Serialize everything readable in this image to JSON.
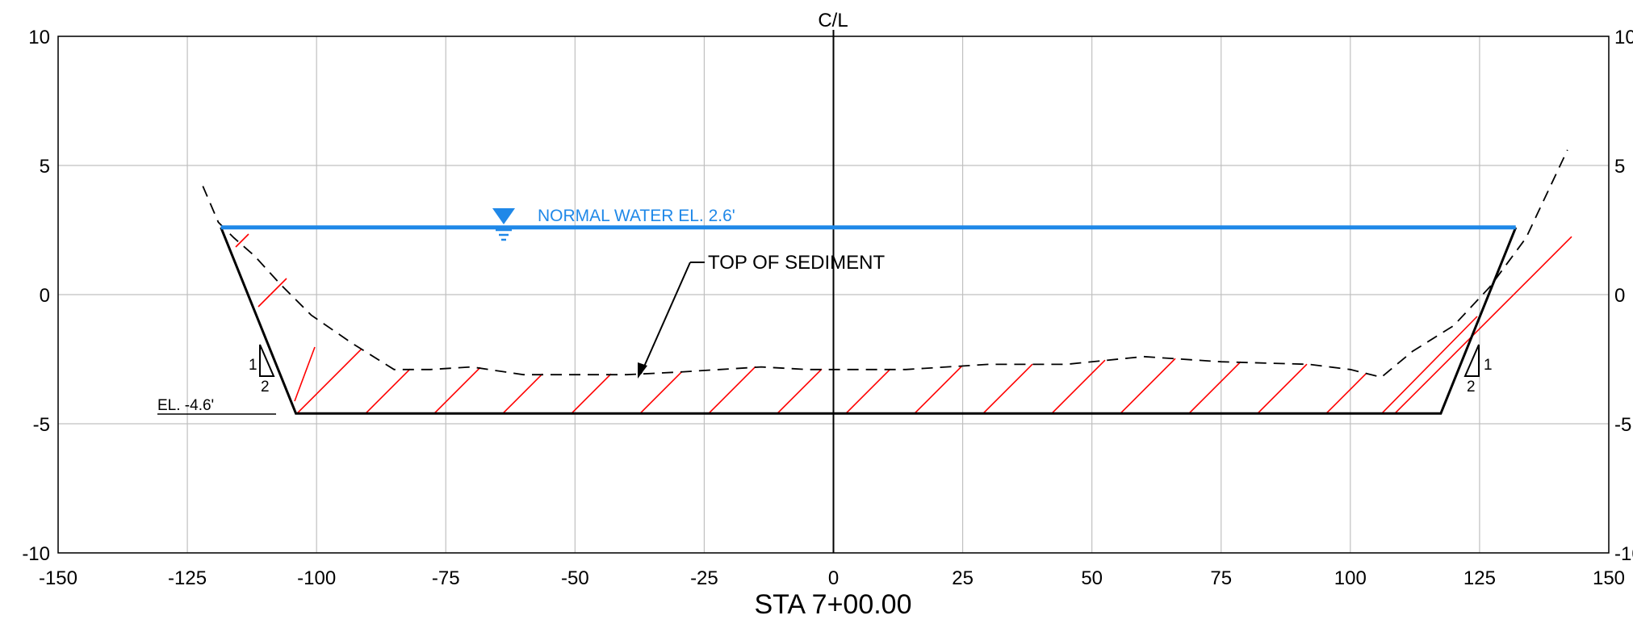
{
  "title": "STA 7+00.00",
  "centerline_label": "C/L",
  "annotations": {
    "water_label": "NORMAL WATER EL. 2.6'",
    "sediment_label": "TOP OF SEDIMENT",
    "bottom_label": "EL. -4.6'",
    "slope_rise": "1",
    "slope_run": "2"
  },
  "colors": {
    "water": "#1f88e8",
    "hatch": "#ff0000",
    "grid": "#c0c0c0",
    "lines": "#000000"
  },
  "chart_data": {
    "type": "cross-section",
    "xlim": [
      -150,
      150
    ],
    "ylim": [
      -10,
      10
    ],
    "x_ticks": [
      -150,
      -125,
      -100,
      -75,
      -50,
      -25,
      0,
      25,
      50,
      75,
      100,
      125,
      150
    ],
    "y_ticks": [
      10,
      5,
      0,
      -5,
      -10
    ],
    "grid": true,
    "normal_water_elevation": 2.6,
    "bottom_elevation": -4.6,
    "design_section": [
      [
        -118.5,
        2.6
      ],
      [
        -104,
        -4.6
      ],
      [
        117.5,
        -4.6
      ],
      [
        132,
        2.6
      ]
    ],
    "sediment_surface": [
      [
        -122,
        4.2
      ],
      [
        -119,
        2.8
      ],
      [
        -116,
        2.2
      ],
      [
        -112,
        1.5
      ],
      [
        -107,
        0.4
      ],
      [
        -101,
        -0.8
      ],
      [
        -93,
        -1.9
      ],
      [
        -85,
        -2.9
      ],
      [
        -78,
        -2.9
      ],
      [
        -70,
        -2.8
      ],
      [
        -60,
        -3.1
      ],
      [
        -50,
        -3.1
      ],
      [
        -40,
        -3.1
      ],
      [
        -30,
        -3.0
      ],
      [
        -22,
        -2.9
      ],
      [
        -14,
        -2.8
      ],
      [
        -5,
        -2.9
      ],
      [
        3,
        -2.9
      ],
      [
        14,
        -2.9
      ],
      [
        30,
        -2.7
      ],
      [
        45,
        -2.7
      ],
      [
        60,
        -2.4
      ],
      [
        75,
        -2.6
      ],
      [
        92,
        -2.7
      ],
      [
        100,
        -2.9
      ],
      [
        106,
        -3.2
      ],
      [
        112,
        -2.2
      ],
      [
        120,
        -1.2
      ],
      [
        127,
        0.3
      ],
      [
        134,
        2.2
      ],
      [
        142,
        5.6
      ]
    ]
  }
}
